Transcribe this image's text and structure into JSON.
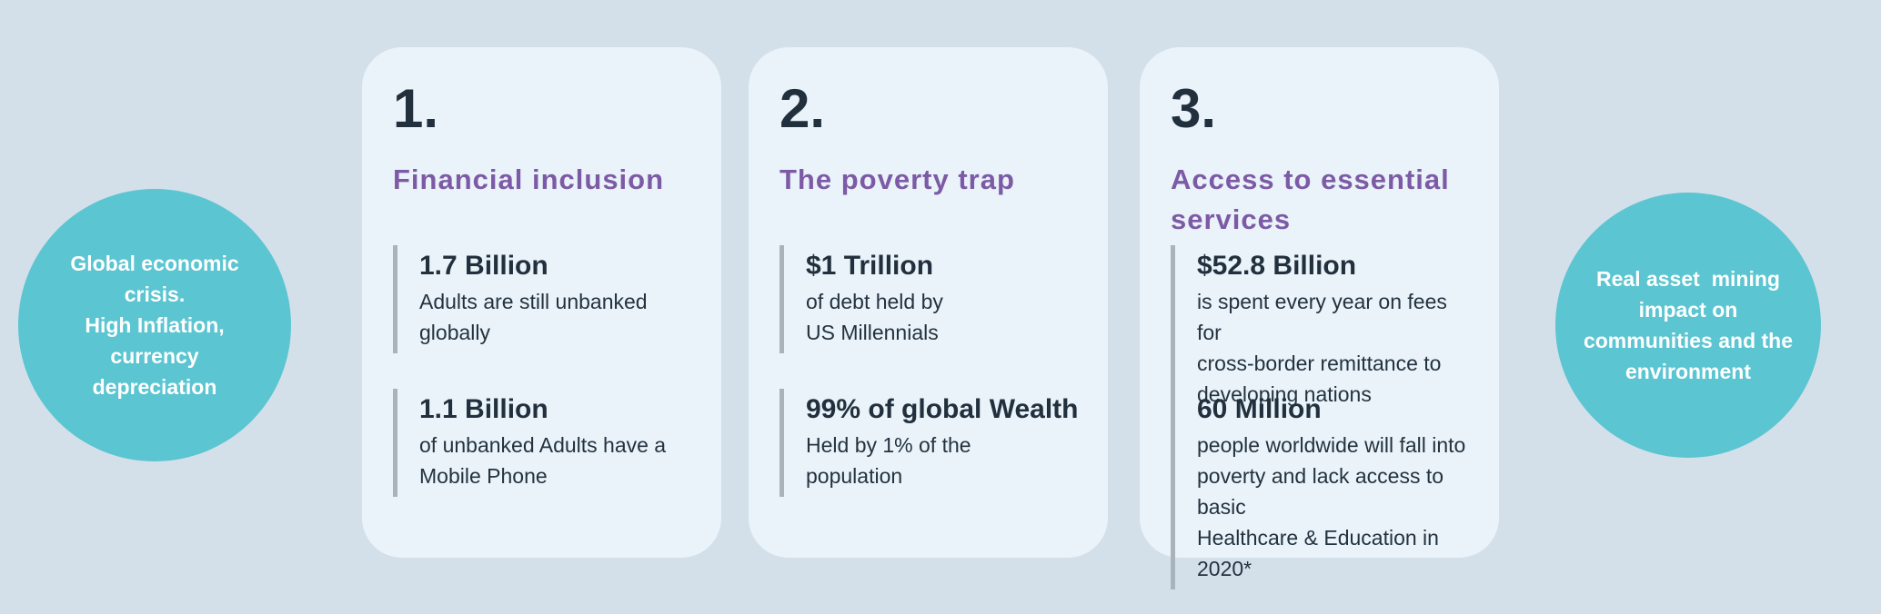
{
  "colors": {
    "page_background": "#d3e0ea",
    "card_background": "#e9f3f9",
    "bubble_teal": "#5bc5d1",
    "title_purple": "#7d5aa6",
    "text_dark": "#22303e",
    "stat_bar_gray": "#a9b3bc",
    "bubble_text": "#ffffff"
  },
  "left_circle": {
    "lines": [
      "Global economic",
      "crisis.",
      "High Inflation,",
      "currency",
      "depreciation"
    ]
  },
  "right_circle": {
    "lines": [
      "Real asset  mining",
      "impact on",
      "communities and the",
      "environment"
    ]
  },
  "cards": [
    {
      "number": "1.",
      "title": "Financial inclusion",
      "stats": [
        {
          "value": "1.7 Billion",
          "description": "Adults are still unbanked\nglobally"
        },
        {
          "value": "1.1 Billion",
          "description": "of unbanked Adults have a\nMobile Phone"
        }
      ]
    },
    {
      "number": "2.",
      "title": "The poverty trap",
      "stats": [
        {
          "value": "$1 Trillion",
          "description": "of debt held by\nUS Millennials"
        },
        {
          "value": "99% of global Wealth",
          "description": "Held by 1% of the\npopulation"
        }
      ]
    },
    {
      "number": "3.",
      "title": "Access to essential services",
      "stats": [
        {
          "value": "$52.8 Billion",
          "description": "is spent every year on fees for\ncross-border remittance to\ndeveloping nations"
        },
        {
          "value": "60 Million",
          "description": "people worldwide will fall into\npoverty and lack access to basic\nHealthcare & Education in 2020*"
        }
      ]
    }
  ]
}
